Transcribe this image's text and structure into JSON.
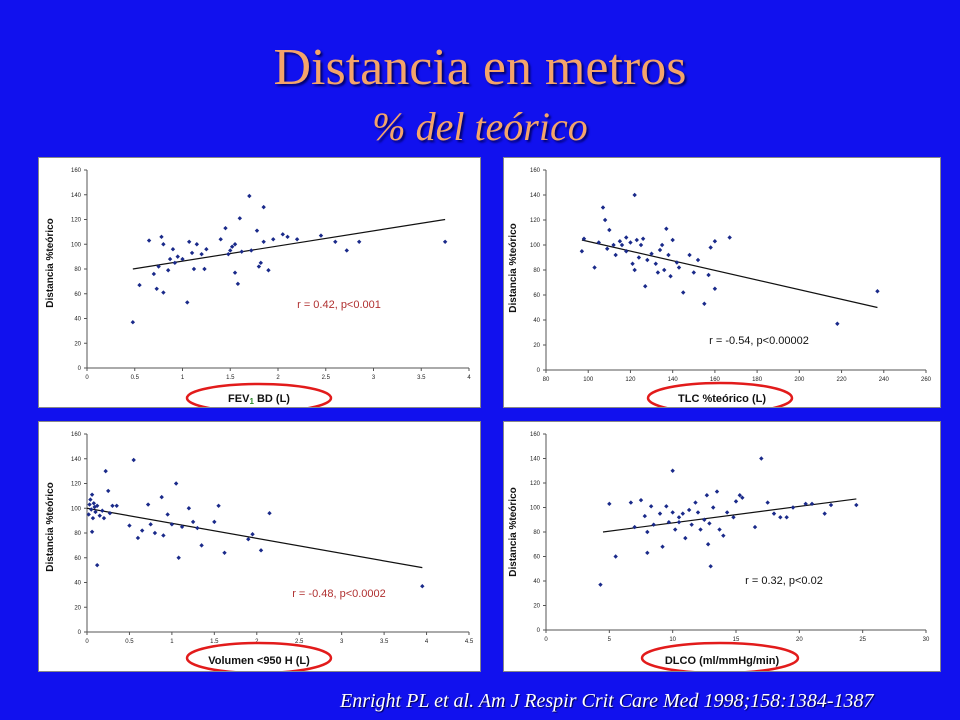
{
  "slide": {
    "title": "Distancia en metros",
    "subtitle": "% del teórico",
    "citation": "Enright PL et al.  Am J Respir Crit Care Med 1998;158:1384-1387"
  },
  "colors": {
    "background": "#1111ee",
    "title": "#f4a46a",
    "points": "#1a2a8a",
    "highlight": "#e21b1b",
    "annotation_red": "#b03030"
  },
  "chart_data": [
    {
      "type": "scatter",
      "title": "",
      "ylabel": "Distancia  %teórico",
      "xlabel": "FEV1 BD (L)",
      "xlabel_main": "FEV",
      "xlabel_sub": "1",
      "xlabel_rest": " BD (L)",
      "xlim": [
        0,
        4
      ],
      "ylim": [
        0,
        160
      ],
      "xticks": [
        "0",
        "0.5",
        "1",
        "1.5",
        "2",
        "2.5",
        "3",
        "3.5",
        "4"
      ],
      "yticks": [
        "0",
        "20",
        "40",
        "60",
        "80",
        "100",
        "120",
        "140",
        "160"
      ],
      "annotation": "r = 0.42,  p<0.001",
      "trendline": [
        [
          0.48,
          80
        ],
        [
          3.75,
          120
        ]
      ],
      "points": [
        [
          0.48,
          37
        ],
        [
          0.55,
          67
        ],
        [
          0.65,
          103
        ],
        [
          0.7,
          76
        ],
        [
          0.73,
          64
        ],
        [
          0.75,
          82
        ],
        [
          0.78,
          106
        ],
        [
          0.8,
          100
        ],
        [
          0.8,
          61
        ],
        [
          0.85,
          79
        ],
        [
          0.87,
          88
        ],
        [
          0.9,
          96
        ],
        [
          0.92,
          85
        ],
        [
          0.95,
          90
        ],
        [
          1.0,
          88
        ],
        [
          1.05,
          53
        ],
        [
          1.07,
          102
        ],
        [
          1.1,
          93
        ],
        [
          1.12,
          80
        ],
        [
          1.15,
          100
        ],
        [
          1.2,
          92
        ],
        [
          1.23,
          80
        ],
        [
          1.25,
          96
        ],
        [
          1.4,
          104
        ],
        [
          1.45,
          113
        ],
        [
          1.48,
          92
        ],
        [
          1.5,
          95
        ],
        [
          1.52,
          98
        ],
        [
          1.55,
          100
        ],
        [
          1.55,
          77
        ],
        [
          1.58,
          68
        ],
        [
          1.6,
          121
        ],
        [
          1.62,
          94
        ],
        [
          1.7,
          139
        ],
        [
          1.72,
          95
        ],
        [
          1.78,
          111
        ],
        [
          1.8,
          82
        ],
        [
          1.82,
          85
        ],
        [
          1.85,
          130
        ],
        [
          1.85,
          102
        ],
        [
          1.9,
          79
        ],
        [
          1.95,
          104
        ],
        [
          2.05,
          108
        ],
        [
          2.1,
          106
        ],
        [
          2.2,
          104
        ],
        [
          2.45,
          107
        ],
        [
          2.6,
          102
        ],
        [
          2.72,
          95
        ],
        [
          2.85,
          102
        ],
        [
          3.75,
          102
        ]
      ]
    },
    {
      "type": "scatter",
      "title": "",
      "ylabel": "Distancia %teórico",
      "xlabel": "TLC %teórico (L)",
      "xlim": [
        80,
        260
      ],
      "ylim": [
        0,
        160
      ],
      "xticks": [
        "80",
        "100",
        "120",
        "140",
        "160",
        "180",
        "200",
        "220",
        "240",
        "260"
      ],
      "yticks": [
        "0",
        "20",
        "40",
        "60",
        "80",
        "100",
        "120",
        "140",
        "160"
      ],
      "annotation": "r = -0.54,  p<0.00002",
      "trendline": [
        [
          97,
          104
        ],
        [
          237,
          50
        ]
      ],
      "points": [
        [
          97,
          95
        ],
        [
          98,
          105
        ],
        [
          103,
          82
        ],
        [
          105,
          102
        ],
        [
          107,
          130
        ],
        [
          108,
          120
        ],
        [
          109,
          97
        ],
        [
          110,
          112
        ],
        [
          112,
          100
        ],
        [
          113,
          92
        ],
        [
          115,
          103
        ],
        [
          116,
          100
        ],
        [
          118,
          106
        ],
        [
          118,
          95
        ],
        [
          120,
          102
        ],
        [
          121,
          85
        ],
        [
          122,
          80
        ],
        [
          122,
          140
        ],
        [
          123,
          104
        ],
        [
          124,
          90
        ],
        [
          125,
          100
        ],
        [
          126,
          105
        ],
        [
          127,
          67
        ],
        [
          128,
          88
        ],
        [
          130,
          93
        ],
        [
          132,
          85
        ],
        [
          133,
          78
        ],
        [
          134,
          96
        ],
        [
          135,
          100
        ],
        [
          136,
          80
        ],
        [
          137,
          113
        ],
        [
          138,
          92
        ],
        [
          139,
          75
        ],
        [
          140,
          104
        ],
        [
          142,
          86
        ],
        [
          143,
          82
        ],
        [
          145,
          62
        ],
        [
          148,
          92
        ],
        [
          150,
          78
        ],
        [
          152,
          88
        ],
        [
          155,
          53
        ],
        [
          157,
          76
        ],
        [
          158,
          98
        ],
        [
          160,
          103
        ],
        [
          160,
          65
        ],
        [
          167,
          106
        ],
        [
          218,
          37
        ],
        [
          237,
          63
        ]
      ]
    },
    {
      "type": "scatter",
      "title": "",
      "ylabel": "Distancia  %teórico",
      "xlabel": "Volumen <950 H (L)",
      "xlim": [
        0,
        4.5
      ],
      "ylim": [
        0,
        160
      ],
      "xticks": [
        "0",
        "0.5",
        "1",
        "1.5",
        "2",
        "2.5",
        "3",
        "3.5",
        "4",
        "4.5"
      ],
      "yticks": [
        "0",
        "20",
        "40",
        "60",
        "80",
        "100",
        "120",
        "140",
        "160"
      ],
      "annotation": "r = -0.48,  p<0.0002",
      "trendline": [
        [
          0,
          100
        ],
        [
          3.95,
          52
        ]
      ],
      "points": [
        [
          0.02,
          95
        ],
        [
          0.03,
          103
        ],
        [
          0.04,
          107
        ],
        [
          0.05,
          99
        ],
        [
          0.06,
          81
        ],
        [
          0.06,
          111
        ],
        [
          0.07,
          92
        ],
        [
          0.08,
          104
        ],
        [
          0.09,
          101
        ],
        [
          0.1,
          97
        ],
        [
          0.12,
          54
        ],
        [
          0.12,
          102
        ],
        [
          0.15,
          94
        ],
        [
          0.18,
          98
        ],
        [
          0.2,
          92
        ],
        [
          0.22,
          130
        ],
        [
          0.25,
          114
        ],
        [
          0.27,
          96
        ],
        [
          0.3,
          102
        ],
        [
          0.35,
          102
        ],
        [
          0.5,
          86
        ],
        [
          0.55,
          139
        ],
        [
          0.6,
          76
        ],
        [
          0.65,
          82
        ],
        [
          0.72,
          103
        ],
        [
          0.75,
          87
        ],
        [
          0.8,
          80
        ],
        [
          0.88,
          109
        ],
        [
          0.9,
          78
        ],
        [
          0.95,
          95
        ],
        [
          1.0,
          87
        ],
        [
          1.05,
          120
        ],
        [
          1.08,
          60
        ],
        [
          1.12,
          85
        ],
        [
          1.2,
          100
        ],
        [
          1.25,
          89
        ],
        [
          1.3,
          84
        ],
        [
          1.35,
          70
        ],
        [
          1.5,
          89
        ],
        [
          1.55,
          102
        ],
        [
          1.62,
          64
        ],
        [
          1.9,
          75
        ],
        [
          1.95,
          79
        ],
        [
          2.05,
          66
        ],
        [
          2.15,
          96
        ],
        [
          3.95,
          37
        ]
      ]
    },
    {
      "type": "scatter",
      "title": "",
      "ylabel": "Distancia %teórico",
      "xlabel": "DLCO (ml/mmHg/min)",
      "xlim": [
        0,
        30
      ],
      "ylim": [
        0,
        160
      ],
      "xticks": [
        "0",
        "5",
        "10",
        "15",
        "20",
        "25",
        "30"
      ],
      "yticks": [
        "0",
        "20",
        "40",
        "60",
        "80",
        "100",
        "120",
        "140",
        "160"
      ],
      "annotation": "r = 0.32,  p<0.02",
      "trendline": [
        [
          4.5,
          80
        ],
        [
          24.5,
          107
        ]
      ],
      "points": [
        [
          4.3,
          37
        ],
        [
          5.0,
          103
        ],
        [
          5.5,
          60
        ],
        [
          6.7,
          104
        ],
        [
          7.0,
          84
        ],
        [
          7.5,
          106
        ],
        [
          7.8,
          93
        ],
        [
          8.0,
          80
        ],
        [
          8.0,
          63
        ],
        [
          8.3,
          101
        ],
        [
          8.5,
          86
        ],
        [
          9.0,
          95
        ],
        [
          9.2,
          68
        ],
        [
          9.5,
          101
        ],
        [
          9.7,
          88
        ],
        [
          10.0,
          96
        ],
        [
          10.0,
          130
        ],
        [
          10.2,
          82
        ],
        [
          10.5,
          92
        ],
        [
          10.5,
          88
        ],
        [
          10.8,
          95
        ],
        [
          11.0,
          75
        ],
        [
          11.3,
          98
        ],
        [
          11.5,
          86
        ],
        [
          11.8,
          104
        ],
        [
          12.0,
          96
        ],
        [
          12.2,
          82
        ],
        [
          12.5,
          90
        ],
        [
          12.7,
          110
        ],
        [
          12.8,
          70
        ],
        [
          12.9,
          87
        ],
        [
          13.0,
          52
        ],
        [
          13.2,
          100
        ],
        [
          13.5,
          113
        ],
        [
          13.7,
          82
        ],
        [
          14.0,
          77
        ],
        [
          14.3,
          96
        ],
        [
          14.8,
          92
        ],
        [
          15.0,
          105
        ],
        [
          15.3,
          110
        ],
        [
          15.5,
          108
        ],
        [
          16.5,
          84
        ],
        [
          17.0,
          140
        ],
        [
          17.5,
          104
        ],
        [
          18.0,
          95
        ],
        [
          18.5,
          92
        ],
        [
          19.0,
          92
        ],
        [
          19.5,
          100
        ],
        [
          20.5,
          103
        ],
        [
          21.0,
          103
        ],
        [
          22.0,
          95
        ],
        [
          22.5,
          102
        ],
        [
          24.5,
          102
        ]
      ]
    }
  ]
}
